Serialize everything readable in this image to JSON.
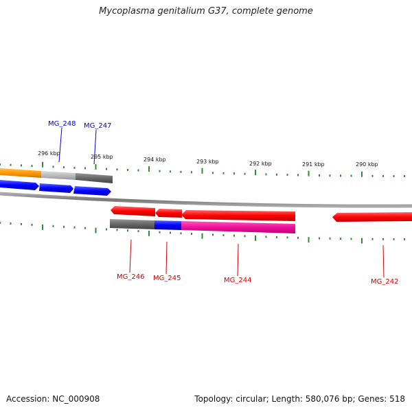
{
  "title": "Mycoplasma genitalium G37, complete genome",
  "footer": {
    "accession": "Accession: NC_000908",
    "summary": "Topology: circular; Length: 580,076 bp; Genes: 518"
  },
  "colors": {
    "backbone": "#888888",
    "ticks": "#2e8b2e",
    "forward_genes": "#0000ff",
    "reverse_genes": "#ff0000",
    "orange": "#ff9900",
    "gray_dark": "#666666",
    "gray_light": "#bbbbbb",
    "magenta": "#ee1199",
    "label_forward": "#0000cc",
    "label_reverse": "#cc0000"
  },
  "kbp_labels": [
    "296 kbp",
    "295 kbp",
    "294 kbp",
    "293 kbp",
    "292 kbp",
    "291 kbp",
    "290 kbp"
  ],
  "forward_labels": [
    "MG_248",
    "MG_247"
  ],
  "reverse_labels": [
    "MG_246",
    "MG_245",
    "MG_244",
    "MG_242"
  ]
}
